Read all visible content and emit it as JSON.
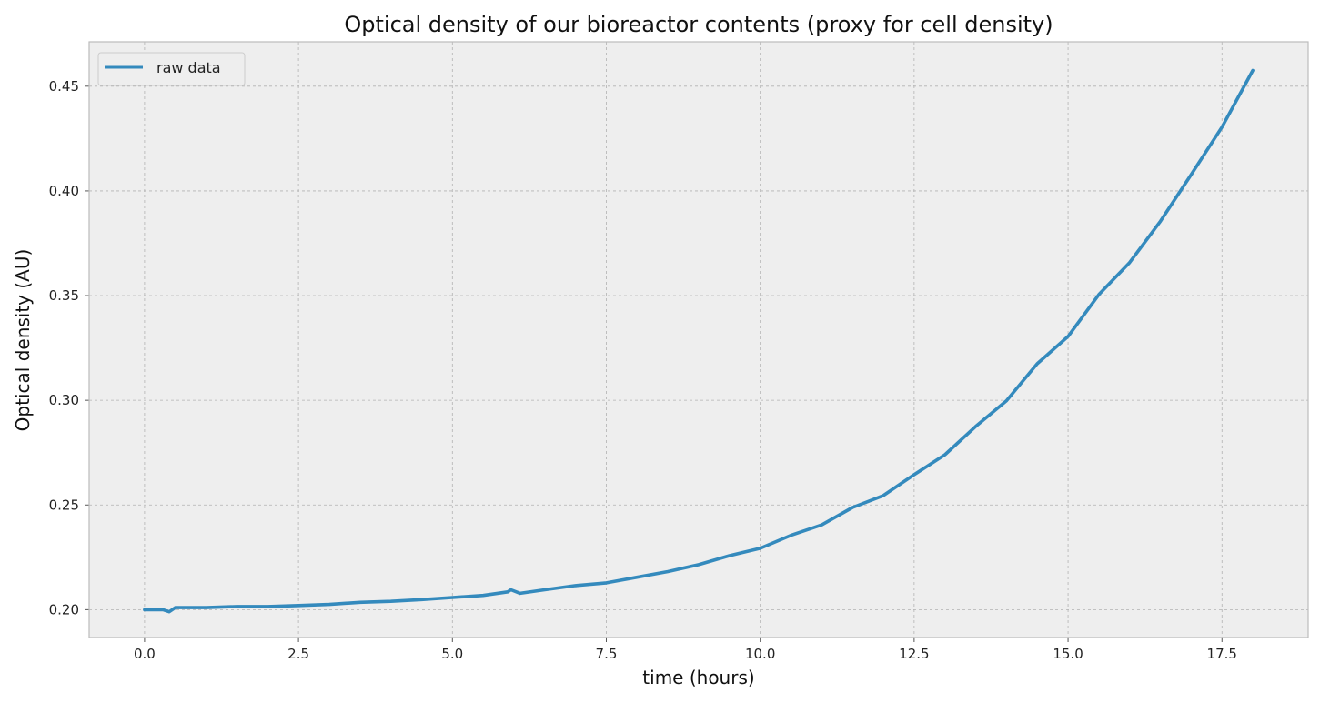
{
  "chart_data": {
    "type": "line",
    "title": "Optical density of our bioreactor contents (proxy for cell density)",
    "xlabel": "time (hours)",
    "ylabel": "Optical density (AU)",
    "xlim": [
      -0.9,
      18.9
    ],
    "ylim": [
      0.1867,
      0.4712
    ],
    "xticks": [
      0.0,
      2.5,
      5.0,
      7.5,
      10.0,
      12.5,
      15.0,
      17.5
    ],
    "xtick_labels": [
      "0.0",
      "2.5",
      "5.0",
      "7.5",
      "10.0",
      "12.5",
      "15.0",
      "17.5"
    ],
    "yticks": [
      0.2,
      0.25,
      0.3,
      0.35,
      0.4,
      0.45
    ],
    "ytick_labels": [
      "0.20",
      "0.25",
      "0.30",
      "0.35",
      "0.40",
      "0.45"
    ],
    "grid": true,
    "legend_position": "upper-left",
    "colors": {
      "series": "#348abd",
      "plot_bg": "#eeeeee",
      "grid": "#b2b2b2",
      "frame": "#bcbcbc"
    },
    "series": [
      {
        "name": "raw data",
        "x": [
          0.0,
          0.3,
          0.4,
          0.5,
          1.0,
          1.5,
          2.0,
          2.5,
          3.0,
          3.5,
          4.0,
          4.5,
          5.0,
          5.5,
          5.9,
          5.95,
          6.1,
          6.5,
          7.0,
          7.5,
          8.0,
          8.5,
          9.0,
          9.5,
          10.0,
          10.5,
          11.0,
          11.5,
          12.0,
          12.5,
          13.0,
          13.5,
          14.0,
          14.5,
          15.0,
          15.5,
          16.0,
          16.5,
          17.0,
          17.5,
          18.0
        ],
        "y": [
          0.2,
          0.2,
          0.199,
          0.201,
          0.201,
          0.2015,
          0.2015,
          0.202,
          0.2025,
          0.2035,
          0.204,
          0.2048,
          0.2058,
          0.2068,
          0.2085,
          0.2095,
          0.2078,
          0.2095,
          0.2115,
          0.2128,
          0.2155,
          0.2182,
          0.2215,
          0.2258,
          0.2293,
          0.2355,
          0.2405,
          0.2488,
          0.2545,
          0.2645,
          0.274,
          0.2875,
          0.2998,
          0.3175,
          0.3305,
          0.3505,
          0.3658,
          0.3855,
          0.4078,
          0.4305,
          0.4575
        ]
      }
    ]
  }
}
